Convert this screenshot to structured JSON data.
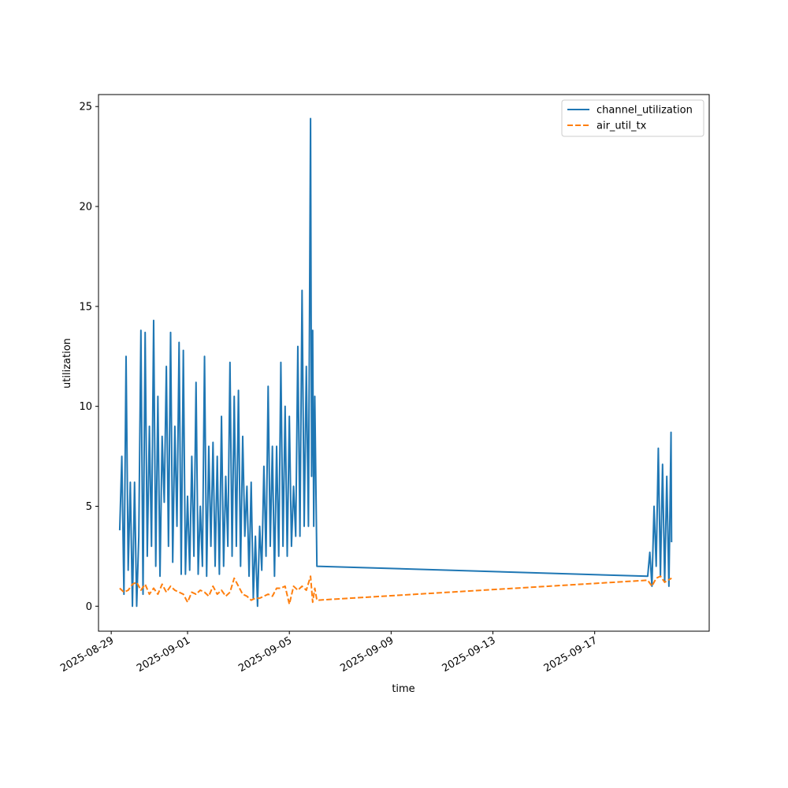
{
  "chart_data": {
    "type": "line",
    "xlabel": "time",
    "ylabel": "utilization",
    "x_axis_kind": "date",
    "xlim": [
      "2025-08-28T12:00",
      "2025-09-21T12:00"
    ],
    "ylim": [
      -1.25,
      25.6
    ],
    "x_ticks": [
      "2025-08-29",
      "2025-09-01",
      "2025-09-05",
      "2025-09-09",
      "2025-09-13",
      "2025-09-17"
    ],
    "y_ticks": [
      0,
      5,
      10,
      15,
      20,
      25
    ],
    "grid": false,
    "legend_position": "upper right",
    "series": [
      {
        "name": "channel_utilization",
        "color": "#1f77b4",
        "linestyle": "solid",
        "points": [
          [
            "2025-08-29T08:00",
            3.8
          ],
          [
            "2025-08-29T10:00",
            7.5
          ],
          [
            "2025-08-29T12:00",
            0.6
          ],
          [
            "2025-08-29T14:00",
            12.5
          ],
          [
            "2025-08-29T16:00",
            1.8
          ],
          [
            "2025-08-29T18:00",
            6.2
          ],
          [
            "2025-08-29T20:00",
            0.0
          ],
          [
            "2025-08-29T22:00",
            6.2
          ],
          [
            "2025-08-30T00:00",
            0.0
          ],
          [
            "2025-08-30T02:00",
            3.5
          ],
          [
            "2025-08-30T04:00",
            13.8
          ],
          [
            "2025-08-30T06:00",
            0.6
          ],
          [
            "2025-08-30T08:00",
            13.7
          ],
          [
            "2025-08-30T10:00",
            2.5
          ],
          [
            "2025-08-30T12:00",
            9.0
          ],
          [
            "2025-08-30T14:00",
            3.0
          ],
          [
            "2025-08-30T16:00",
            14.3
          ],
          [
            "2025-08-30T18:00",
            2.0
          ],
          [
            "2025-08-30T20:00",
            10.5
          ],
          [
            "2025-08-30T22:00",
            1.5
          ],
          [
            "2025-08-31T00:00",
            8.5
          ],
          [
            "2025-08-31T02:00",
            5.2
          ],
          [
            "2025-08-31T04:00",
            12.0
          ],
          [
            "2025-08-31T06:00",
            3.0
          ],
          [
            "2025-08-31T08:00",
            13.7
          ],
          [
            "2025-08-31T10:00",
            2.2
          ],
          [
            "2025-08-31T12:00",
            9.0
          ],
          [
            "2025-08-31T14:00",
            4.0
          ],
          [
            "2025-08-31T16:00",
            13.2
          ],
          [
            "2025-08-31T18:00",
            1.6
          ],
          [
            "2025-08-31T20:00",
            12.8
          ],
          [
            "2025-08-31T22:00",
            1.6
          ],
          [
            "2025-09-01T00:00",
            5.5
          ],
          [
            "2025-09-01T02:00",
            1.8
          ],
          [
            "2025-09-01T04:00",
            7.5
          ],
          [
            "2025-09-01T06:00",
            2.5
          ],
          [
            "2025-09-01T08:00",
            11.2
          ],
          [
            "2025-09-01T10:00",
            1.6
          ],
          [
            "2025-09-01T12:00",
            5.0
          ],
          [
            "2025-09-01T14:00",
            2.0
          ],
          [
            "2025-09-01T16:00",
            12.5
          ],
          [
            "2025-09-01T18:00",
            1.5
          ],
          [
            "2025-09-01T20:00",
            8.0
          ],
          [
            "2025-09-01T22:00",
            3.0
          ],
          [
            "2025-09-02T00:00",
            8.2
          ],
          [
            "2025-09-02T02:00",
            2.0
          ],
          [
            "2025-09-02T04:00",
            7.5
          ],
          [
            "2025-09-02T06:00",
            1.6
          ],
          [
            "2025-09-02T08:00",
            9.5
          ],
          [
            "2025-09-02T10:00",
            2.0
          ],
          [
            "2025-09-02T12:00",
            6.5
          ],
          [
            "2025-09-02T14:00",
            3.0
          ],
          [
            "2025-09-02T16:00",
            12.2
          ],
          [
            "2025-09-02T18:00",
            2.5
          ],
          [
            "2025-09-02T20:00",
            10.5
          ],
          [
            "2025-09-02T22:00",
            3.0
          ],
          [
            "2025-09-03T00:00",
            10.8
          ],
          [
            "2025-09-03T02:00",
            2.0
          ],
          [
            "2025-09-03T04:00",
            8.5
          ],
          [
            "2025-09-03T06:00",
            3.5
          ],
          [
            "2025-09-03T08:00",
            6.0
          ],
          [
            "2025-09-03T10:00",
            1.5
          ],
          [
            "2025-09-03T12:00",
            6.2
          ],
          [
            "2025-09-03T14:00",
            0.4
          ],
          [
            "2025-09-03T16:00",
            3.5
          ],
          [
            "2025-09-03T18:00",
            0.0
          ],
          [
            "2025-09-03T20:00",
            4.0
          ],
          [
            "2025-09-03T22:00",
            1.8
          ],
          [
            "2025-09-04T00:00",
            7.0
          ],
          [
            "2025-09-04T02:00",
            2.5
          ],
          [
            "2025-09-04T04:00",
            11.0
          ],
          [
            "2025-09-04T06:00",
            3.0
          ],
          [
            "2025-09-04T08:00",
            8.0
          ],
          [
            "2025-09-04T10:00",
            1.5
          ],
          [
            "2025-09-04T12:00",
            8.0
          ],
          [
            "2025-09-04T14:00",
            2.5
          ],
          [
            "2025-09-04T16:00",
            12.2
          ],
          [
            "2025-09-04T18:00",
            3.0
          ],
          [
            "2025-09-04T20:00",
            10.0
          ],
          [
            "2025-09-04T22:00",
            2.5
          ],
          [
            "2025-09-05T00:00",
            9.5
          ],
          [
            "2025-09-05T02:00",
            3.0
          ],
          [
            "2025-09-05T04:00",
            6.0
          ],
          [
            "2025-09-05T06:00",
            3.5
          ],
          [
            "2025-09-05T08:00",
            13.0
          ],
          [
            "2025-09-05T10:00",
            3.5
          ],
          [
            "2025-09-05T12:00",
            15.8
          ],
          [
            "2025-09-05T14:00",
            4.0
          ],
          [
            "2025-09-05T16:00",
            12.0
          ],
          [
            "2025-09-05T18:00",
            4.0
          ],
          [
            "2025-09-05T20:00",
            24.4
          ],
          [
            "2025-09-05T21:00",
            6.5
          ],
          [
            "2025-09-05T22:00",
            13.8
          ],
          [
            "2025-09-05T23:00",
            4.0
          ],
          [
            "2025-09-06T00:00",
            10.5
          ],
          [
            "2025-09-06T02:00",
            2.0
          ],
          [
            "2025-09-19T02:00",
            1.5
          ],
          [
            "2025-09-19T04:00",
            2.7
          ],
          [
            "2025-09-19T06:00",
            1.0
          ],
          [
            "2025-09-19T08:00",
            5.0
          ],
          [
            "2025-09-19T10:00",
            2.0
          ],
          [
            "2025-09-19T12:00",
            7.9
          ],
          [
            "2025-09-19T14:00",
            1.5
          ],
          [
            "2025-09-19T16:00",
            7.1
          ],
          [
            "2025-09-19T18:00",
            1.2
          ],
          [
            "2025-09-19T20:00",
            6.5
          ],
          [
            "2025-09-19T22:00",
            1.0
          ],
          [
            "2025-09-20T00:00",
            8.7
          ],
          [
            "2025-09-20T00:30",
            3.2
          ]
        ]
      },
      {
        "name": "air_util_tx",
        "color": "#ff7f0e",
        "linestyle": "dashed",
        "points": [
          [
            "2025-08-29T08:00",
            0.9
          ],
          [
            "2025-08-29T12:00",
            0.7
          ],
          [
            "2025-08-29T16:00",
            0.8
          ],
          [
            "2025-08-29T20:00",
            1.1
          ],
          [
            "2025-08-30T00:00",
            1.2
          ],
          [
            "2025-08-30T04:00",
            0.8
          ],
          [
            "2025-08-30T08:00",
            1.1
          ],
          [
            "2025-08-30T12:00",
            0.6
          ],
          [
            "2025-08-30T16:00",
            0.9
          ],
          [
            "2025-08-30T20:00",
            0.6
          ],
          [
            "2025-08-31T00:00",
            1.1
          ],
          [
            "2025-08-31T04:00",
            0.7
          ],
          [
            "2025-08-31T08:00",
            1.0
          ],
          [
            "2025-08-31T12:00",
            0.8
          ],
          [
            "2025-08-31T16:00",
            0.7
          ],
          [
            "2025-08-31T20:00",
            0.6
          ],
          [
            "2025-09-01T00:00",
            0.2
          ],
          [
            "2025-09-01T04:00",
            0.7
          ],
          [
            "2025-09-01T08:00",
            0.6
          ],
          [
            "2025-09-01T12:00",
            0.8
          ],
          [
            "2025-09-01T16:00",
            0.7
          ],
          [
            "2025-09-01T20:00",
            0.5
          ],
          [
            "2025-09-02T00:00",
            1.0
          ],
          [
            "2025-09-02T04:00",
            0.6
          ],
          [
            "2025-09-02T08:00",
            0.8
          ],
          [
            "2025-09-02T12:00",
            0.5
          ],
          [
            "2025-09-02T16:00",
            0.7
          ],
          [
            "2025-09-02T20:00",
            1.4
          ],
          [
            "2025-09-03T00:00",
            1.0
          ],
          [
            "2025-09-03T04:00",
            0.6
          ],
          [
            "2025-09-03T08:00",
            0.5
          ],
          [
            "2025-09-03T12:00",
            0.3
          ],
          [
            "2025-09-03T16:00",
            0.4
          ],
          [
            "2025-09-03T20:00",
            0.4
          ],
          [
            "2025-09-04T00:00",
            0.5
          ],
          [
            "2025-09-04T04:00",
            0.6
          ],
          [
            "2025-09-04T08:00",
            0.5
          ],
          [
            "2025-09-04T12:00",
            0.9
          ],
          [
            "2025-09-04T16:00",
            0.9
          ],
          [
            "2025-09-04T20:00",
            1.0
          ],
          [
            "2025-09-05T00:00",
            0.1
          ],
          [
            "2025-09-05T04:00",
            1.0
          ],
          [
            "2025-09-05T08:00",
            0.8
          ],
          [
            "2025-09-05T12:00",
            1.0
          ],
          [
            "2025-09-05T16:00",
            0.8
          ],
          [
            "2025-09-05T20:00",
            1.5
          ],
          [
            "2025-09-05T22:00",
            0.2
          ],
          [
            "2025-09-06T00:00",
            0.9
          ],
          [
            "2025-09-06T02:00",
            0.3
          ],
          [
            "2025-09-19T02:00",
            1.3
          ],
          [
            "2025-09-19T06:00",
            1.0
          ],
          [
            "2025-09-19T10:00",
            1.4
          ],
          [
            "2025-09-19T14:00",
            1.5
          ],
          [
            "2025-09-19T18:00",
            1.2
          ],
          [
            "2025-09-20T00:30",
            1.4
          ]
        ]
      }
    ]
  }
}
